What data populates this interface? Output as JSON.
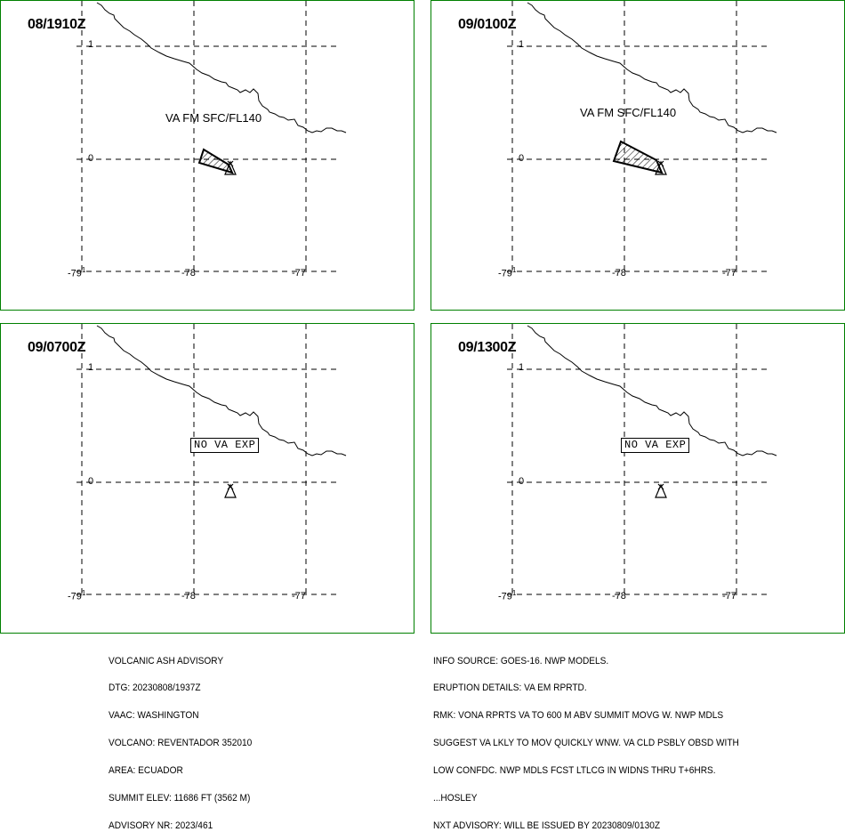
{
  "panels": [
    {
      "time": "08/1910Z",
      "va_label": "VA FM SFC/FL140",
      "status_box": "",
      "ash_area": "small"
    },
    {
      "time": "09/0100Z",
      "va_label": "VA FM SFC/FL140",
      "status_box": "",
      "ash_area": "large"
    },
    {
      "time": "09/0700Z",
      "va_label": "",
      "status_box": "NO VA EXP",
      "ash_area": "none"
    },
    {
      "time": "09/1300Z",
      "va_label": "",
      "status_box": "NO VA EXP",
      "ash_area": "none"
    }
  ],
  "grid": {
    "lat_labels": [
      "1",
      "0"
    ],
    "lon_labels": [
      "-79",
      "-78",
      "-77"
    ],
    "corner_lat": "1"
  },
  "colors": {
    "panel_border": "#008000",
    "lines": "#000000"
  },
  "advisory_left": {
    "lines": [
      "VOLCANIC ASH ADVISORY",
      "DTG: 20230808/1937Z",
      "VAAC: WASHINGTON",
      "VOLCANO: REVENTADOR 352010",
      "AREA: ECUADOR",
      "SUMMIT ELEV: 11686 FT (3562 M)",
      "ADVISORY NR: 2023/461"
    ]
  },
  "advisory_right": {
    "lines": [
      "INFO SOURCE: GOES-16. NWP MODELS.",
      "ERUPTION DETAILS: VA EM RPRTD.",
      "RMK: VONA RPRTS VA TO 600 M ABV SUMMIT MOVG W. NWP MDLS",
      "SUGGEST VA LKLY TO MOV QUICKLY WNW. VA CLD PSBLY OBSD WITH",
      "LOW CONFDC. NWP MDLS FCST LTLCG IN WIDNS THRU T+6HRS.",
      "...HOSLEY",
      "NXT ADVISORY: WILL BE ISSUED BY 20230809/0130Z"
    ]
  }
}
